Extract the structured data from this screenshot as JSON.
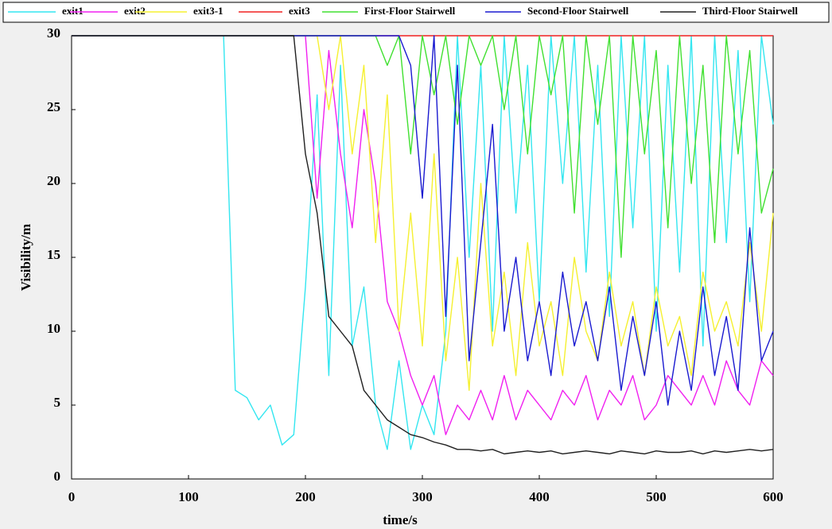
{
  "chart_data": {
    "type": "line",
    "x_label": "time/s",
    "y_label": "Visibility/m",
    "x": [
      0,
      10,
      20,
      30,
      40,
      50,
      60,
      70,
      80,
      90,
      100,
      110,
      120,
      130,
      140,
      150,
      160,
      170,
      180,
      190,
      200,
      210,
      220,
      230,
      240,
      250,
      260,
      270,
      280,
      290,
      300,
      310,
      320,
      330,
      340,
      350,
      360,
      370,
      380,
      390,
      400,
      410,
      420,
      430,
      440,
      450,
      460,
      470,
      480,
      490,
      500,
      510,
      520,
      530,
      540,
      550,
      560,
      570,
      580,
      590,
      600
    ],
    "xlim": [
      0,
      600
    ],
    "xticks": [
      0,
      100,
      200,
      300,
      400,
      500,
      600
    ],
    "ylim": [
      0,
      30
    ],
    "yticks": [
      0,
      5,
      10,
      15,
      20,
      25,
      30
    ],
    "legend": "top",
    "series": [
      {
        "name": "exit1",
        "color": "#33e6f0",
        "values": [
          30,
          30,
          30,
          30,
          30,
          30,
          30,
          30,
          30,
          30,
          30,
          30,
          30,
          30,
          6,
          5.5,
          4,
          5,
          2.3,
          3,
          13,
          26,
          7,
          28,
          9,
          13,
          5,
          2,
          8,
          2,
          5,
          3,
          10,
          30,
          15,
          28,
          10,
          30,
          18,
          28,
          12,
          30,
          20,
          30,
          14,
          28,
          11,
          30,
          17,
          30,
          10,
          28,
          14,
          30,
          9,
          30,
          16,
          29,
          12,
          30,
          24
        ]
      },
      {
        "name": "exit2",
        "color": "#f020f0",
        "values": [
          30,
          30,
          30,
          30,
          30,
          30,
          30,
          30,
          30,
          30,
          30,
          30,
          30,
          30,
          30,
          30,
          30,
          30,
          30,
          30,
          30,
          19,
          29,
          22,
          17,
          25,
          20,
          12,
          10,
          7,
          5,
          7,
          3,
          5,
          4,
          6,
          4,
          7,
          4,
          6,
          5,
          4,
          6,
          5,
          7,
          4,
          6,
          5,
          7,
          4,
          5,
          7,
          6,
          5,
          7,
          5,
          8,
          6,
          5,
          8,
          7
        ]
      },
      {
        "name": "exit3-1",
        "color": "#f5f030",
        "values": [
          30,
          30,
          30,
          30,
          30,
          30,
          30,
          30,
          30,
          30,
          30,
          30,
          30,
          30,
          30,
          30,
          30,
          30,
          30,
          30,
          30,
          30,
          25,
          30,
          22,
          28,
          16,
          26,
          10,
          18,
          9,
          22,
          8,
          15,
          6,
          20,
          9,
          14,
          7,
          16,
          9,
          12,
          7,
          15,
          10,
          8,
          14,
          9,
          12,
          7,
          13,
          9,
          11,
          7,
          14,
          10,
          12,
          9,
          16,
          10,
          18
        ]
      },
      {
        "name": "exit3",
        "color": "#f02020",
        "values": [
          30,
          30,
          30,
          30,
          30,
          30,
          30,
          30,
          30,
          30,
          30,
          30,
          30,
          30,
          30,
          30,
          30,
          30,
          30,
          30,
          30,
          30,
          30,
          30,
          30,
          30,
          30,
          30,
          30,
          30,
          30,
          30,
          30,
          30,
          30,
          30,
          30,
          30,
          30,
          30,
          30,
          30,
          30,
          30,
          30,
          30,
          30,
          30,
          30,
          30,
          30,
          30,
          30,
          30,
          30,
          30,
          30,
          30,
          30,
          30,
          30
        ]
      },
      {
        "name": "First-Floor Stairwell",
        "color": "#40e030",
        "values": [
          30,
          30,
          30,
          30,
          30,
          30,
          30,
          30,
          30,
          30,
          30,
          30,
          30,
          30,
          30,
          30,
          30,
          30,
          30,
          30,
          30,
          30,
          30,
          30,
          30,
          30,
          30,
          28,
          30,
          22,
          30,
          26,
          30,
          24,
          30,
          28,
          30,
          25,
          30,
          22,
          30,
          26,
          30,
          18,
          30,
          24,
          30,
          15,
          30,
          22,
          29,
          17,
          30,
          20,
          28,
          16,
          30,
          22,
          29,
          18,
          21
        ]
      },
      {
        "name": "Second-Floor Stairwell",
        "color": "#1a1ad0",
        "values": [
          30,
          30,
          30,
          30,
          30,
          30,
          30,
          30,
          30,
          30,
          30,
          30,
          30,
          30,
          30,
          30,
          30,
          30,
          30,
          30,
          30,
          30,
          30,
          30,
          30,
          30,
          30,
          30,
          30,
          28,
          19,
          30,
          11,
          28,
          8,
          16,
          24,
          10,
          15,
          8,
          12,
          7,
          14,
          9,
          12,
          8,
          13,
          6,
          11,
          7,
          12,
          5,
          10,
          6,
          13,
          7,
          11,
          6,
          17,
          8,
          10
        ]
      },
      {
        "name": "Third-Floor Stairwell",
        "color": "#202020",
        "values": [
          30,
          30,
          30,
          30,
          30,
          30,
          30,
          30,
          30,
          30,
          30,
          30,
          30,
          30,
          30,
          30,
          30,
          30,
          30,
          30,
          22,
          18,
          11,
          10,
          9,
          6,
          5,
          4,
          3.5,
          3,
          2.8,
          2.5,
          2.3,
          2,
          2,
          1.9,
          2,
          1.7,
          1.8,
          1.9,
          1.8,
          1.9,
          1.7,
          1.8,
          1.9,
          1.8,
          1.7,
          1.9,
          1.8,
          1.7,
          1.9,
          1.8,
          1.8,
          1.9,
          1.7,
          1.9,
          1.8,
          1.9,
          2,
          1.9,
          2
        ]
      }
    ]
  }
}
